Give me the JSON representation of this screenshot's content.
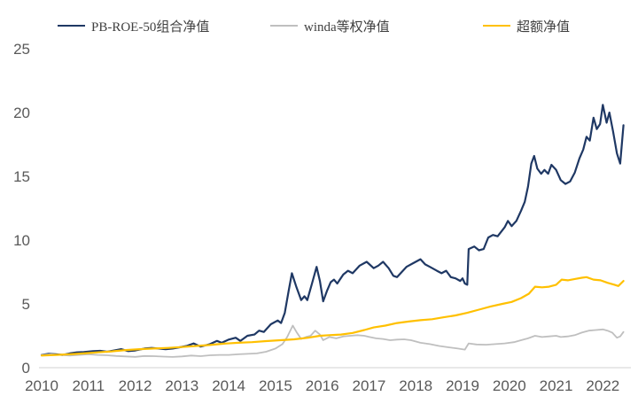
{
  "legend": {
    "items": [
      {
        "label": "PB-ROE-50组合净值",
        "color": "#1f3864"
      },
      {
        "label": "winda等权净值",
        "color": "#bfbfbf"
      },
      {
        "label": "超额净值",
        "color": "#ffc000"
      }
    ]
  },
  "chart_data": {
    "type": "line",
    "title": "",
    "xlabel": "",
    "ylabel": "",
    "xlim": [
      2010,
      2022.6
    ],
    "ylim": [
      0,
      25
    ],
    "yticks": [
      0,
      5,
      10,
      15,
      20,
      25
    ],
    "xticks": [
      2010,
      2011,
      2012,
      2013,
      2014,
      2015,
      2016,
      2017,
      2018,
      2019,
      2020,
      2021,
      2022
    ],
    "grid": false,
    "legend_position": "top",
    "axis_line_color": "#d9d9d9",
    "tick_label_color": "#595959",
    "series": [
      {
        "name": "PB-ROE-50组合净值",
        "color": "#1f3864",
        "width": 2.2,
        "points": [
          [
            2010.0,
            1.0
          ],
          [
            2010.15,
            1.08
          ],
          [
            2010.3,
            1.05
          ],
          [
            2010.45,
            1.0
          ],
          [
            2010.6,
            1.12
          ],
          [
            2010.75,
            1.2
          ],
          [
            2010.9,
            1.22
          ],
          [
            2011.1,
            1.3
          ],
          [
            2011.25,
            1.32
          ],
          [
            2011.4,
            1.25
          ],
          [
            2011.55,
            1.35
          ],
          [
            2011.7,
            1.45
          ],
          [
            2011.85,
            1.3
          ],
          [
            2012.0,
            1.35
          ],
          [
            2012.2,
            1.5
          ],
          [
            2012.35,
            1.55
          ],
          [
            2012.5,
            1.5
          ],
          [
            2012.65,
            1.45
          ],
          [
            2012.8,
            1.5
          ],
          [
            2012.95,
            1.6
          ],
          [
            2013.1,
            1.7
          ],
          [
            2013.25,
            1.9
          ],
          [
            2013.4,
            1.65
          ],
          [
            2013.6,
            1.85
          ],
          [
            2013.75,
            2.1
          ],
          [
            2013.85,
            1.95
          ],
          [
            2014.0,
            2.2
          ],
          [
            2014.15,
            2.35
          ],
          [
            2014.25,
            2.1
          ],
          [
            2014.4,
            2.5
          ],
          [
            2014.55,
            2.6
          ],
          [
            2014.65,
            2.9
          ],
          [
            2014.75,
            2.8
          ],
          [
            2014.9,
            3.4
          ],
          [
            2015.05,
            3.7
          ],
          [
            2015.12,
            3.5
          ],
          [
            2015.2,
            4.3
          ],
          [
            2015.28,
            6.0
          ],
          [
            2015.35,
            7.4
          ],
          [
            2015.45,
            6.3
          ],
          [
            2015.55,
            5.3
          ],
          [
            2015.62,
            5.6
          ],
          [
            2015.68,
            5.3
          ],
          [
            2015.78,
            6.6
          ],
          [
            2015.88,
            7.9
          ],
          [
            2015.95,
            6.8
          ],
          [
            2016.02,
            5.2
          ],
          [
            2016.1,
            6.0
          ],
          [
            2016.18,
            6.7
          ],
          [
            2016.25,
            6.9
          ],
          [
            2016.32,
            6.6
          ],
          [
            2016.45,
            7.3
          ],
          [
            2016.55,
            7.6
          ],
          [
            2016.65,
            7.4
          ],
          [
            2016.8,
            8.0
          ],
          [
            2016.95,
            8.3
          ],
          [
            2017.1,
            7.8
          ],
          [
            2017.2,
            8.0
          ],
          [
            2017.3,
            8.3
          ],
          [
            2017.42,
            7.8
          ],
          [
            2017.52,
            7.2
          ],
          [
            2017.6,
            7.1
          ],
          [
            2017.7,
            7.5
          ],
          [
            2017.8,
            7.9
          ],
          [
            2017.95,
            8.2
          ],
          [
            2018.1,
            8.5
          ],
          [
            2018.2,
            8.1
          ],
          [
            2018.3,
            7.9
          ],
          [
            2018.45,
            7.6
          ],
          [
            2018.55,
            7.4
          ],
          [
            2018.65,
            7.6
          ],
          [
            2018.75,
            7.1
          ],
          [
            2018.85,
            7.0
          ],
          [
            2018.95,
            6.8
          ],
          [
            2019.0,
            7.0
          ],
          [
            2019.05,
            6.6
          ],
          [
            2019.1,
            6.5
          ],
          [
            2019.13,
            9.3
          ],
          [
            2019.25,
            9.5
          ],
          [
            2019.35,
            9.2
          ],
          [
            2019.45,
            9.3
          ],
          [
            2019.55,
            10.2
          ],
          [
            2019.65,
            10.4
          ],
          [
            2019.75,
            10.3
          ],
          [
            2019.9,
            11.0
          ],
          [
            2019.97,
            11.5
          ],
          [
            2020.05,
            11.1
          ],
          [
            2020.15,
            11.5
          ],
          [
            2020.25,
            12.3
          ],
          [
            2020.33,
            13.0
          ],
          [
            2020.4,
            14.2
          ],
          [
            2020.47,
            16.0
          ],
          [
            2020.53,
            16.6
          ],
          [
            2020.6,
            15.6
          ],
          [
            2020.68,
            15.2
          ],
          [
            2020.75,
            15.5
          ],
          [
            2020.83,
            15.2
          ],
          [
            2020.9,
            15.9
          ],
          [
            2021.0,
            15.5
          ],
          [
            2021.1,
            14.7
          ],
          [
            2021.2,
            14.4
          ],
          [
            2021.3,
            14.6
          ],
          [
            2021.4,
            15.3
          ],
          [
            2021.5,
            16.4
          ],
          [
            2021.58,
            17.1
          ],
          [
            2021.65,
            18.1
          ],
          [
            2021.72,
            17.8
          ],
          [
            2021.8,
            19.6
          ],
          [
            2021.87,
            18.7
          ],
          [
            2021.94,
            19.1
          ],
          [
            2022.0,
            20.6
          ],
          [
            2022.08,
            19.2
          ],
          [
            2022.14,
            20.0
          ],
          [
            2022.22,
            18.5
          ],
          [
            2022.3,
            16.8
          ],
          [
            2022.37,
            16.0
          ],
          [
            2022.44,
            19.0
          ]
        ]
      },
      {
        "name": "winda等权净值",
        "color": "#bfbfbf",
        "width": 1.8,
        "points": [
          [
            2010.0,
            1.0
          ],
          [
            2010.2,
            1.05
          ],
          [
            2010.4,
            1.0
          ],
          [
            2010.6,
            0.95
          ],
          [
            2010.8,
            1.0
          ],
          [
            2011.0,
            1.05
          ],
          [
            2011.2,
            1.0
          ],
          [
            2011.4,
            0.97
          ],
          [
            2011.6,
            0.92
          ],
          [
            2011.8,
            0.88
          ],
          [
            2012.0,
            0.85
          ],
          [
            2012.2,
            0.92
          ],
          [
            2012.4,
            0.9
          ],
          [
            2012.6,
            0.87
          ],
          [
            2012.8,
            0.84
          ],
          [
            2013.0,
            0.88
          ],
          [
            2013.2,
            0.95
          ],
          [
            2013.4,
            0.9
          ],
          [
            2013.6,
            0.97
          ],
          [
            2013.8,
            1.0
          ],
          [
            2014.0,
            1.0
          ],
          [
            2014.2,
            1.05
          ],
          [
            2014.4,
            1.08
          ],
          [
            2014.6,
            1.12
          ],
          [
            2014.8,
            1.25
          ],
          [
            2015.0,
            1.5
          ],
          [
            2015.15,
            1.85
          ],
          [
            2015.25,
            2.4
          ],
          [
            2015.37,
            3.3
          ],
          [
            2015.45,
            2.8
          ],
          [
            2015.55,
            2.25
          ],
          [
            2015.65,
            2.4
          ],
          [
            2015.75,
            2.5
          ],
          [
            2015.85,
            2.9
          ],
          [
            2015.95,
            2.6
          ],
          [
            2016.02,
            2.15
          ],
          [
            2016.15,
            2.4
          ],
          [
            2016.3,
            2.3
          ],
          [
            2016.45,
            2.45
          ],
          [
            2016.6,
            2.5
          ],
          [
            2016.75,
            2.55
          ],
          [
            2016.9,
            2.5
          ],
          [
            2017.0,
            2.42
          ],
          [
            2017.15,
            2.3
          ],
          [
            2017.3,
            2.25
          ],
          [
            2017.45,
            2.15
          ],
          [
            2017.6,
            2.2
          ],
          [
            2017.75,
            2.22
          ],
          [
            2017.9,
            2.15
          ],
          [
            2018.1,
            1.95
          ],
          [
            2018.3,
            1.85
          ],
          [
            2018.5,
            1.7
          ],
          [
            2018.7,
            1.6
          ],
          [
            2018.9,
            1.5
          ],
          [
            2019.05,
            1.42
          ],
          [
            2019.13,
            1.9
          ],
          [
            2019.3,
            1.82
          ],
          [
            2019.5,
            1.8
          ],
          [
            2019.7,
            1.85
          ],
          [
            2019.9,
            1.9
          ],
          [
            2020.1,
            2.0
          ],
          [
            2020.25,
            2.15
          ],
          [
            2020.4,
            2.3
          ],
          [
            2020.55,
            2.5
          ],
          [
            2020.7,
            2.4
          ],
          [
            2020.85,
            2.45
          ],
          [
            2021.0,
            2.5
          ],
          [
            2021.1,
            2.4
          ],
          [
            2021.25,
            2.45
          ],
          [
            2021.4,
            2.55
          ],
          [
            2021.55,
            2.75
          ],
          [
            2021.7,
            2.9
          ],
          [
            2021.85,
            2.95
          ],
          [
            2022.0,
            3.0
          ],
          [
            2022.1,
            2.9
          ],
          [
            2022.2,
            2.75
          ],
          [
            2022.3,
            2.35
          ],
          [
            2022.37,
            2.45
          ],
          [
            2022.44,
            2.8
          ]
        ]
      },
      {
        "name": "超额净值",
        "color": "#ffc000",
        "width": 2.2,
        "points": [
          [
            2010.0,
            0.95
          ],
          [
            2010.3,
            1.0
          ],
          [
            2010.6,
            1.05
          ],
          [
            2010.9,
            1.12
          ],
          [
            2011.2,
            1.2
          ],
          [
            2011.5,
            1.28
          ],
          [
            2011.8,
            1.38
          ],
          [
            2012.1,
            1.45
          ],
          [
            2012.4,
            1.5
          ],
          [
            2012.7,
            1.55
          ],
          [
            2013.0,
            1.62
          ],
          [
            2013.3,
            1.7
          ],
          [
            2013.6,
            1.78
          ],
          [
            2013.9,
            1.88
          ],
          [
            2014.2,
            1.95
          ],
          [
            2014.5,
            2.0
          ],
          [
            2014.8,
            2.08
          ],
          [
            2015.1,
            2.15
          ],
          [
            2015.4,
            2.22
          ],
          [
            2015.7,
            2.35
          ],
          [
            2015.95,
            2.5
          ],
          [
            2016.15,
            2.55
          ],
          [
            2016.4,
            2.6
          ],
          [
            2016.65,
            2.72
          ],
          [
            2016.9,
            2.95
          ],
          [
            2017.1,
            3.15
          ],
          [
            2017.35,
            3.3
          ],
          [
            2017.6,
            3.5
          ],
          [
            2017.85,
            3.62
          ],
          [
            2018.1,
            3.72
          ],
          [
            2018.35,
            3.8
          ],
          [
            2018.6,
            3.95
          ],
          [
            2018.85,
            4.1
          ],
          [
            2019.1,
            4.3
          ],
          [
            2019.35,
            4.55
          ],
          [
            2019.6,
            4.8
          ],
          [
            2019.85,
            5.0
          ],
          [
            2020.05,
            5.15
          ],
          [
            2020.25,
            5.45
          ],
          [
            2020.42,
            5.8
          ],
          [
            2020.55,
            6.35
          ],
          [
            2020.7,
            6.3
          ],
          [
            2020.85,
            6.35
          ],
          [
            2021.0,
            6.5
          ],
          [
            2021.12,
            6.9
          ],
          [
            2021.25,
            6.85
          ],
          [
            2021.4,
            6.95
          ],
          [
            2021.55,
            7.05
          ],
          [
            2021.65,
            7.1
          ],
          [
            2021.8,
            6.9
          ],
          [
            2021.95,
            6.85
          ],
          [
            2022.1,
            6.65
          ],
          [
            2022.25,
            6.5
          ],
          [
            2022.33,
            6.4
          ],
          [
            2022.44,
            6.8
          ]
        ]
      }
    ]
  }
}
